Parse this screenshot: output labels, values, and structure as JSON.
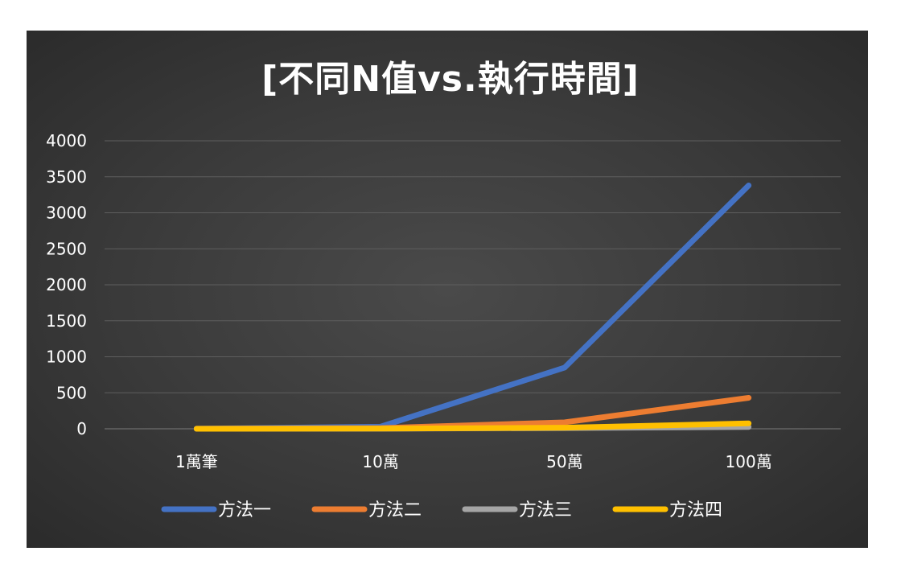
{
  "chart_data": {
    "type": "line",
    "title": "[不同N值vs.執行時間]",
    "categories": [
      "1萬筆",
      "10萬",
      "50萬",
      "100萬"
    ],
    "ylim": [
      0,
      4000
    ],
    "y_ticks": [
      0,
      500,
      1000,
      1500,
      2000,
      2500,
      3000,
      3500,
      4000
    ],
    "grid": true,
    "legend_position": "bottom",
    "series": [
      {
        "name": "方法一",
        "color": "#4472C4",
        "values": [
          2,
          30,
          850,
          3380
        ]
      },
      {
        "name": "方法二",
        "color": "#ED7D31",
        "values": [
          1,
          10,
          90,
          430
        ]
      },
      {
        "name": "方法三",
        "color": "#A5A5A5",
        "values": [
          0,
          2,
          10,
          25
        ]
      },
      {
        "name": "方法四",
        "color": "#FFC000",
        "values": [
          0,
          3,
          15,
          75
        ]
      }
    ]
  }
}
